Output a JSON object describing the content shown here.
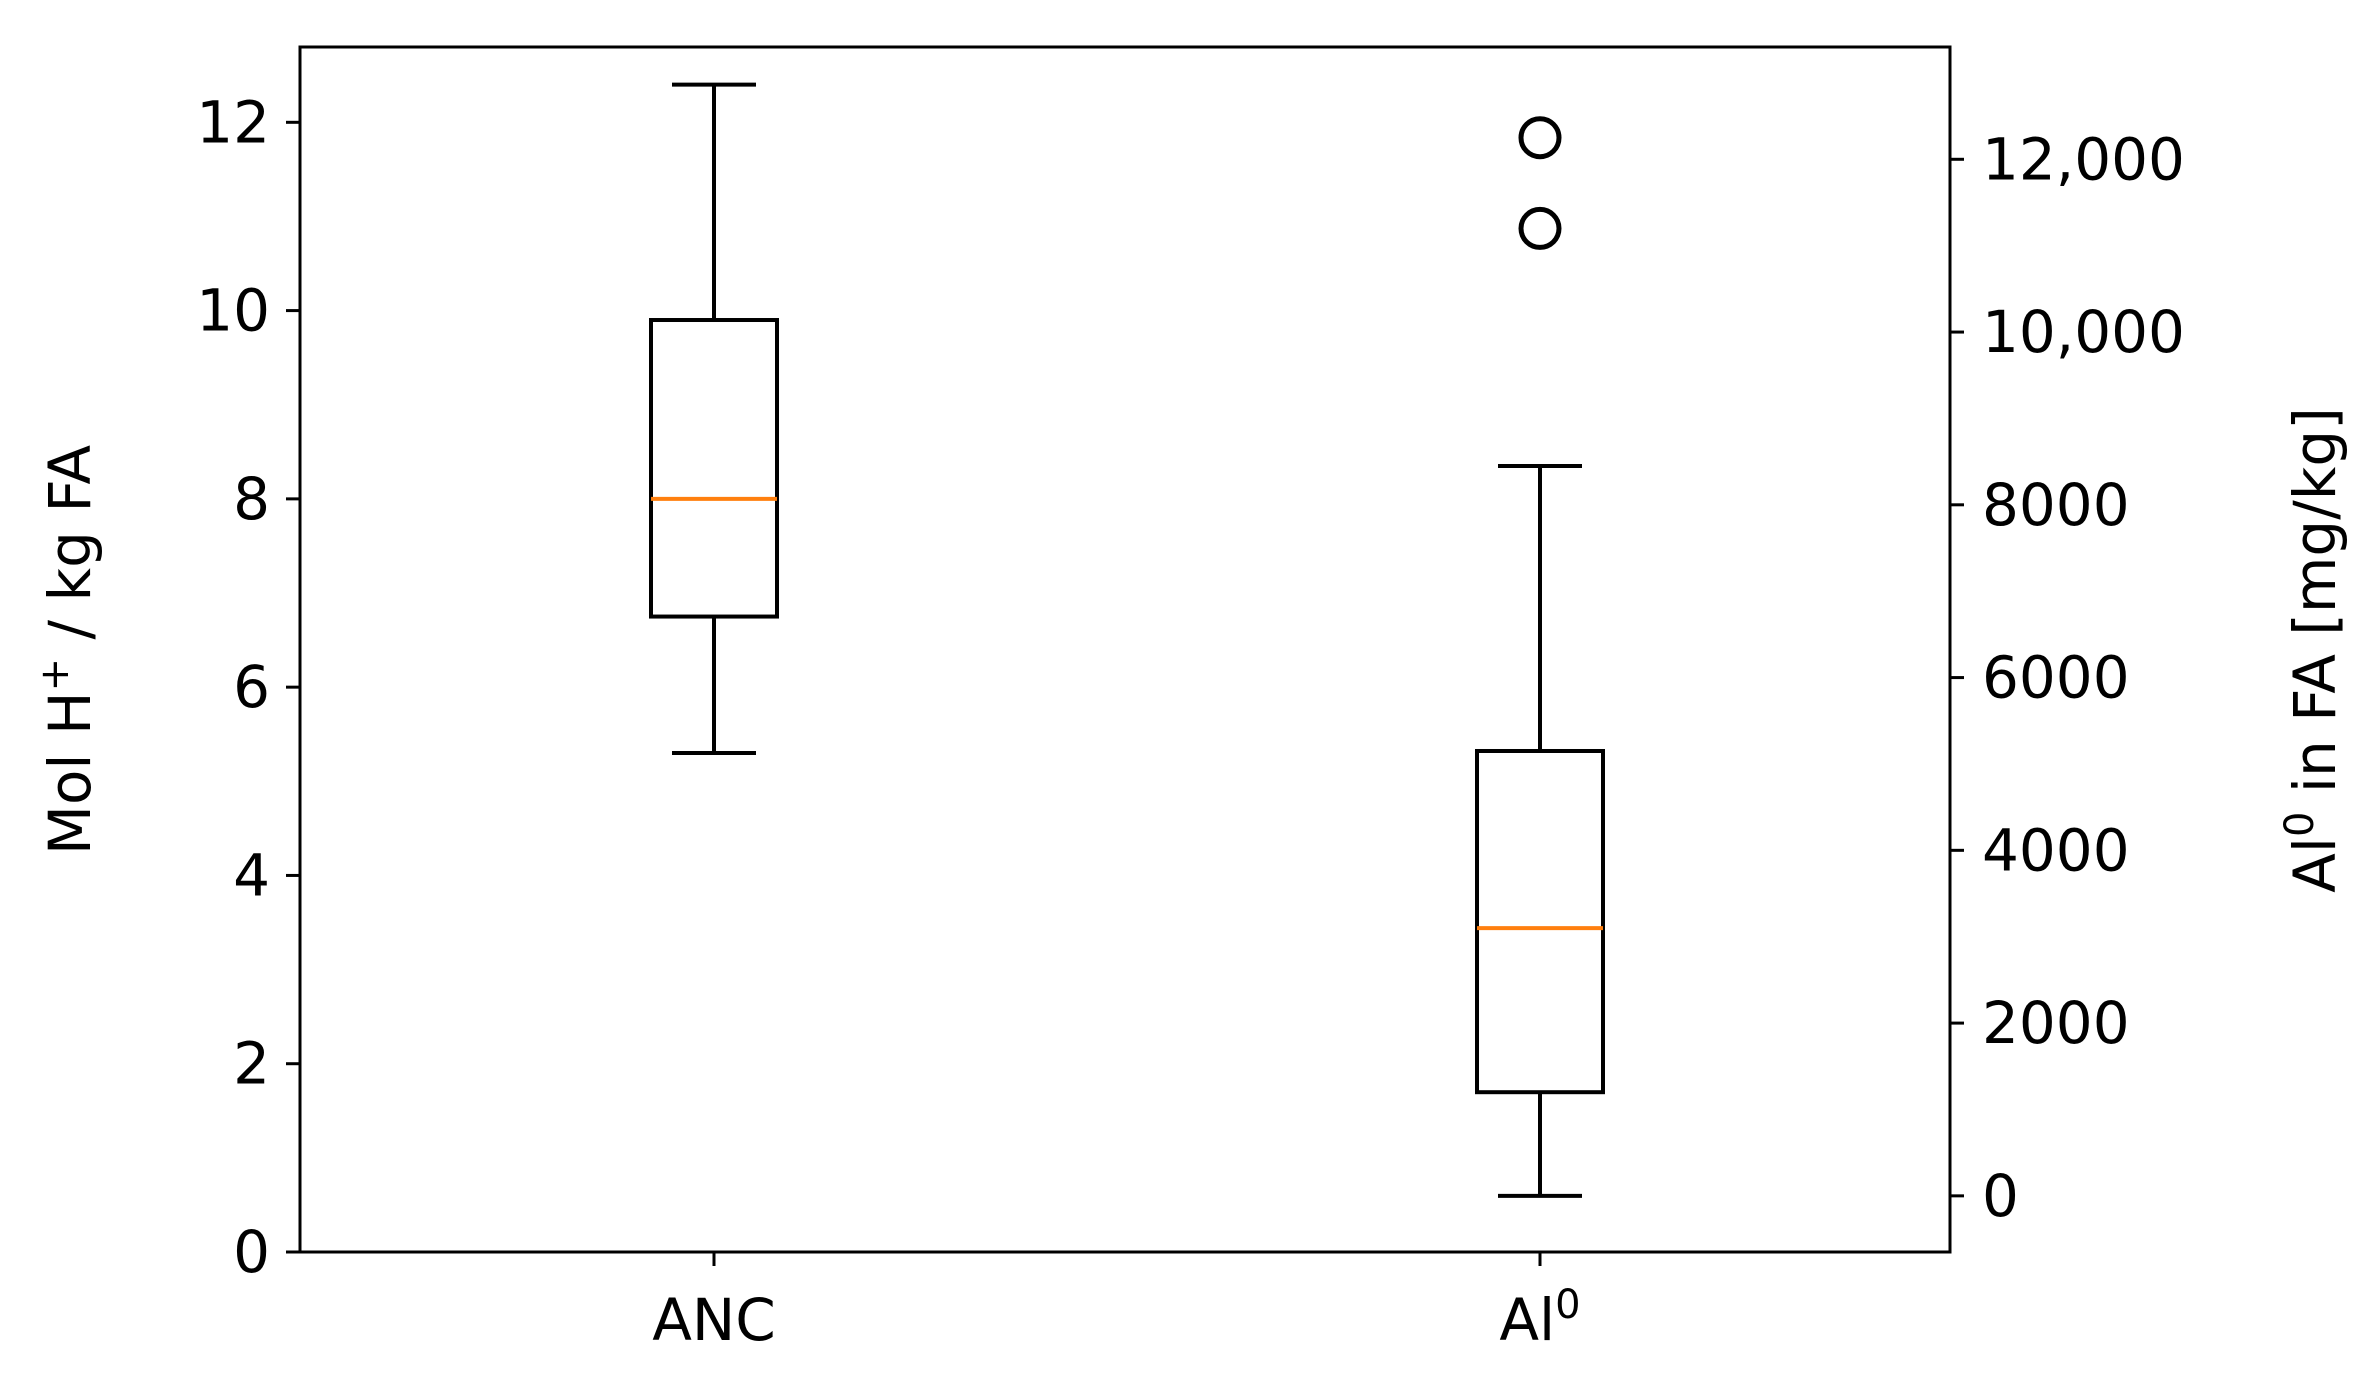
{
  "chart_data": {
    "type": "box",
    "categories": [
      "ANC",
      "Al0"
    ],
    "category_labels": [
      {
        "base": "ANC",
        "sup": ""
      },
      {
        "base": "Al",
        "sup": "0"
      }
    ],
    "y_left": {
      "label_parts": {
        "pre": "Mol H",
        "sup": "+",
        "post": " / kg FA"
      },
      "ylim": [
        0,
        12.8
      ],
      "ticks": [
        0,
        2,
        4,
        6,
        8,
        10,
        12
      ],
      "tick_labels": [
        "0",
        "2",
        "4",
        "6",
        "8",
        "10",
        "12"
      ]
    },
    "y_right": {
      "label_parts": {
        "pre": "Al",
        "sup": "0",
        "post": " in FA [mg/kg]"
      },
      "ylim": [
        -650,
        13300
      ],
      "ticks": [
        0,
        2000,
        4000,
        6000,
        8000,
        10000,
        12000
      ],
      "tick_labels": [
        "0",
        "2000",
        "4000",
        "6000",
        "8000",
        "10,000",
        "12,000"
      ]
    },
    "boxes": [
      {
        "category": "ANC",
        "axis": "left",
        "whisker_low": 5.3,
        "q1": 6.75,
        "median": 8.0,
        "q3": 9.9,
        "whisker_high": 12.4,
        "outliers": []
      },
      {
        "category": "Al0",
        "axis": "right",
        "whisker_low": 0,
        "q1": 1200,
        "median": 3100,
        "q3": 5150,
        "whisker_high": 8450,
        "outliers": [
          11200,
          12250
        ]
      }
    ],
    "grid": false,
    "colors": {
      "box": "#000000",
      "median": "#ff7f0e",
      "background": "#ffffff"
    }
  }
}
